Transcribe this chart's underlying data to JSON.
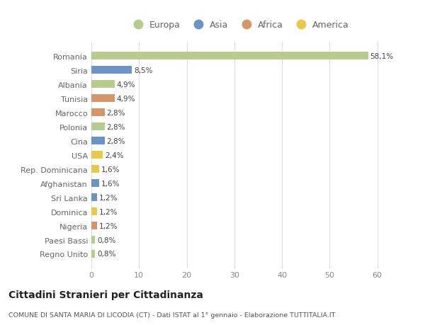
{
  "countries": [
    "Romania",
    "Siria",
    "Albania",
    "Tunisia",
    "Marocco",
    "Polonia",
    "Cina",
    "USA",
    "Rep. Dominicana",
    "Afghanistan",
    "Sri Lanka",
    "Dominica",
    "Nigeria",
    "Paesi Bassi",
    "Regno Unito"
  ],
  "values": [
    58.1,
    8.5,
    4.9,
    4.9,
    2.8,
    2.8,
    2.8,
    2.4,
    1.6,
    1.6,
    1.2,
    1.2,
    1.2,
    0.8,
    0.8
  ],
  "continents": [
    "Europa",
    "Asia",
    "Europa",
    "Africa",
    "Africa",
    "Europa",
    "Asia",
    "America",
    "America",
    "Asia",
    "Asia",
    "America",
    "Africa",
    "Europa",
    "Europa"
  ],
  "colors": {
    "Europa": "#b5cc8e",
    "Asia": "#6b93c4",
    "Africa": "#d4956a",
    "America": "#e8c84a"
  },
  "title": "Cittadini Stranieri per Cittadinanza",
  "subtitle": "COMUNE DI SANTA MARIA DI LICODIA (CT) - Dati ISTAT al 1° gennaio - Elaborazione TUTTITALIA.IT",
  "xlim": [
    0,
    62
  ],
  "xticks": [
    0,
    10,
    20,
    30,
    40,
    50,
    60
  ],
  "background_color": "#ffffff",
  "grid_color": "#dddddd",
  "legend_order": [
    "Europa",
    "Asia",
    "Africa",
    "America"
  ]
}
